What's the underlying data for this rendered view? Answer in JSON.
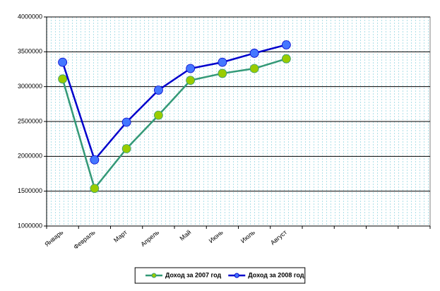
{
  "chart_data": {
    "type": "line",
    "categories": [
      "Январь",
      "Февраль",
      "Март",
      "Апрель",
      "Май",
      "Июнь",
      "Июль",
      "Август",
      null,
      null,
      null,
      null
    ],
    "series": [
      {
        "name": "Доход за 2007 год",
        "color": "#339977",
        "marker_color": "#99cc00",
        "values": [
          3110000,
          1540000,
          2110000,
          2590000,
          3090000,
          3190000,
          3260000,
          3400000,
          null,
          null,
          null,
          null
        ]
      },
      {
        "name": "Доход за 2008 год",
        "color": "#0000cc",
        "marker_color": "#4477ff",
        "values": [
          3350000,
          1950000,
          2490000,
          2950000,
          3260000,
          3350000,
          3480000,
          3600000,
          null,
          null,
          null,
          null
        ]
      }
    ],
    "ylim": [
      1000000,
      4000000
    ],
    "yticks": [
      1000000,
      1500000,
      2000000,
      2500000,
      3000000,
      3500000,
      4000000
    ],
    "grid": true,
    "legend": "bottom"
  }
}
